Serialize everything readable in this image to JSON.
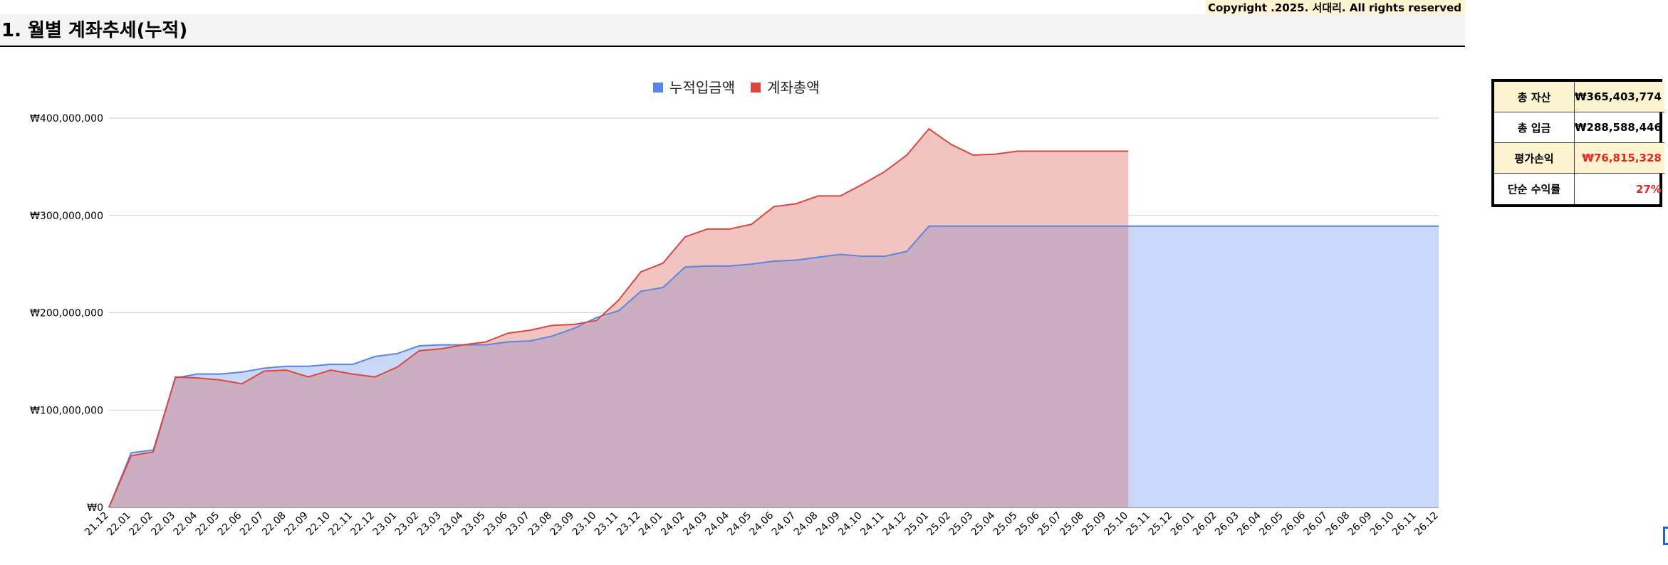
{
  "copyright": "Copyright .2025. 서대리. All rights reserved",
  "section_title": "1. 월별 계좌추세(누적)",
  "summary": {
    "rows": [
      {
        "label": "총 자산",
        "value": "₩365,403,774"
      },
      {
        "label": "총 입금",
        "value": "₩288,588,446"
      },
      {
        "label": "평가손익",
        "value": "₩76,815,328"
      },
      {
        "label": "단순 수익률",
        "value": "27%"
      }
    ]
  },
  "colors": {
    "deposit_line": "#5b84e8",
    "deposit_fill": "#c9d8f8",
    "total_line": "#d9473e",
    "total_fill": "#f1c3c1",
    "overlap_fill": "#cbafc1",
    "profit_red": "#e8261f",
    "cream": "#fdf3d0"
  },
  "chart_data": {
    "type": "area",
    "title": "",
    "xlabel": "",
    "ylabel": "",
    "ylim": [
      0,
      400000000
    ],
    "yticks": [
      0,
      100000000,
      200000000,
      300000000,
      400000000
    ],
    "ytick_labels": [
      "₩0",
      "₩100,000,000",
      "₩200,000,000",
      "₩300,000,000",
      "₩400,000,000"
    ],
    "grid": true,
    "legend_position": "top-center",
    "categories": [
      "21.12",
      "22.01",
      "22.02",
      "22.03",
      "22.04",
      "22.05",
      "22.06",
      "22.07",
      "22.08",
      "22.09",
      "22.10",
      "22.11",
      "22.12",
      "23.01",
      "23.02",
      "23.03",
      "23.04",
      "23.05",
      "23.06",
      "23.07",
      "23.08",
      "23.09",
      "23.10",
      "23.11",
      "23.12",
      "24.01",
      "24.02",
      "24.03",
      "24.04",
      "24.05",
      "24.06",
      "24.07",
      "24.08",
      "24.09",
      "24.10",
      "24.11",
      "24.12",
      "25.01",
      "25.02",
      "25.03",
      "25.04",
      "25.05",
      "25.06",
      "25.07",
      "25.08",
      "25.09",
      "25.10",
      "25.11",
      "25.12",
      "26.01",
      "26.02",
      "26.03",
      "26.04",
      "26.05",
      "26.06",
      "26.07",
      "26.08",
      "26.09",
      "26.10",
      "26.11",
      "26.12"
    ],
    "series": [
      {
        "name": "누적입금액",
        "values": [
          0,
          56000000,
          59000000,
          133000000,
          137000000,
          137000000,
          139000000,
          143000000,
          145000000,
          145000000,
          147000000,
          147000000,
          155000000,
          158000000,
          166000000,
          167000000,
          167000000,
          167000000,
          170000000,
          171000000,
          176000000,
          184000000,
          195000000,
          202000000,
          222000000,
          226000000,
          247000000,
          248000000,
          248000000,
          250000000,
          253000000,
          254000000,
          257000000,
          260000000,
          258000000,
          258000000,
          263000000,
          289000000,
          289000000,
          289000000,
          289000000,
          289000000,
          289000000,
          289000000,
          289000000,
          289000000,
          289000000,
          289000000,
          289000000,
          289000000,
          289000000,
          289000000,
          289000000,
          289000000,
          289000000,
          289000000,
          289000000,
          289000000,
          289000000,
          289000000,
          289000000
        ]
      },
      {
        "name": "계좌총액",
        "values": [
          0,
          53000000,
          57000000,
          134000000,
          133000000,
          131000000,
          127000000,
          140000000,
          141000000,
          134000000,
          141000000,
          137000000,
          134000000,
          144000000,
          161000000,
          163000000,
          167000000,
          170000000,
          179000000,
          182000000,
          187000000,
          188000000,
          192000000,
          213000000,
          242000000,
          251000000,
          278000000,
          286000000,
          286000000,
          291000000,
          309000000,
          312000000,
          320000000,
          320000000,
          332000000,
          345000000,
          362000000,
          389000000,
          373000000,
          362000000,
          363000000,
          366000000,
          366000000,
          366000000,
          366000000,
          366000000,
          366000000,
          null,
          null,
          null,
          null,
          null,
          null,
          null,
          null,
          null,
          null,
          null,
          null,
          null,
          null
        ]
      }
    ]
  }
}
